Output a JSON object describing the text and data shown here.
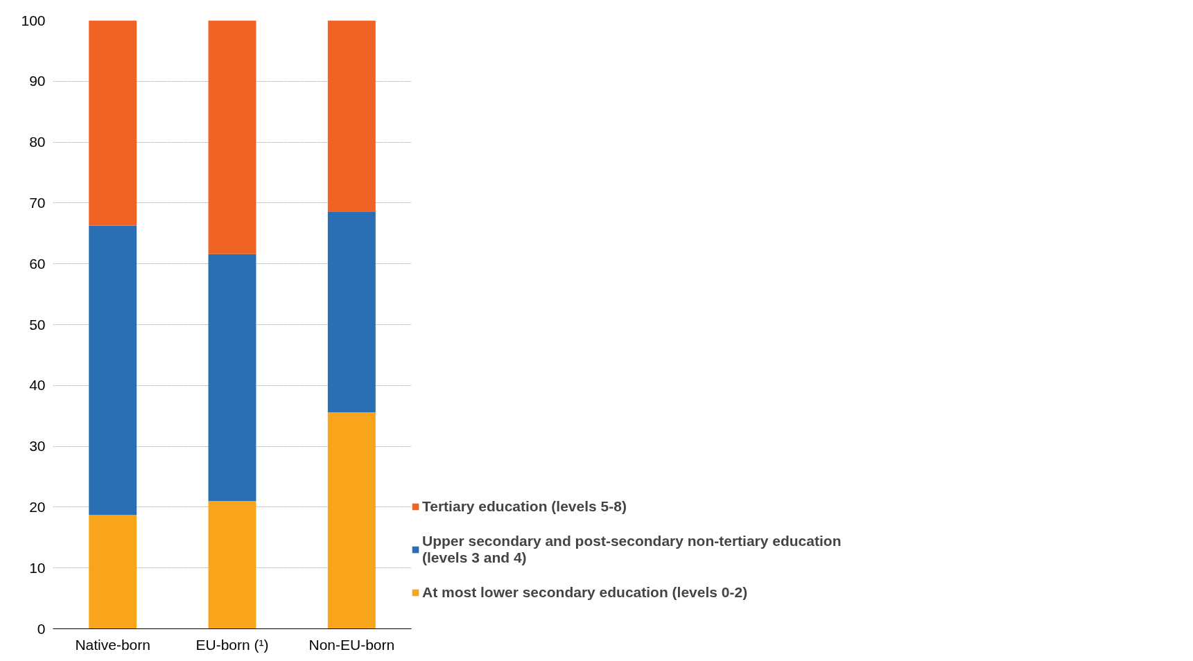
{
  "chart_data": {
    "type": "bar",
    "stacked": true,
    "categories": [
      "Native-born",
      "EU-born (¹)",
      "Non-EU-born"
    ],
    "series": [
      {
        "name": "At most lower secondary education (levels 0-2)",
        "color": "#f9a51c",
        "values": [
          18.7,
          21.0,
          35.6
        ]
      },
      {
        "name": "Upper secondary and post-secondary non-tertiary education (levels 3 and 4)",
        "color": "#2a6eb4",
        "values": [
          47.6,
          40.6,
          32.9
        ]
      },
      {
        "name": "Tertiary education (levels 5-8)",
        "color": "#ef6424",
        "values": [
          33.7,
          38.4,
          31.5
        ]
      }
    ],
    "ylim": [
      0,
      100
    ],
    "yticks": [
      0,
      10,
      20,
      30,
      40,
      50,
      60,
      70,
      80,
      90,
      100
    ],
    "grid": "y",
    "legend": "right"
  }
}
